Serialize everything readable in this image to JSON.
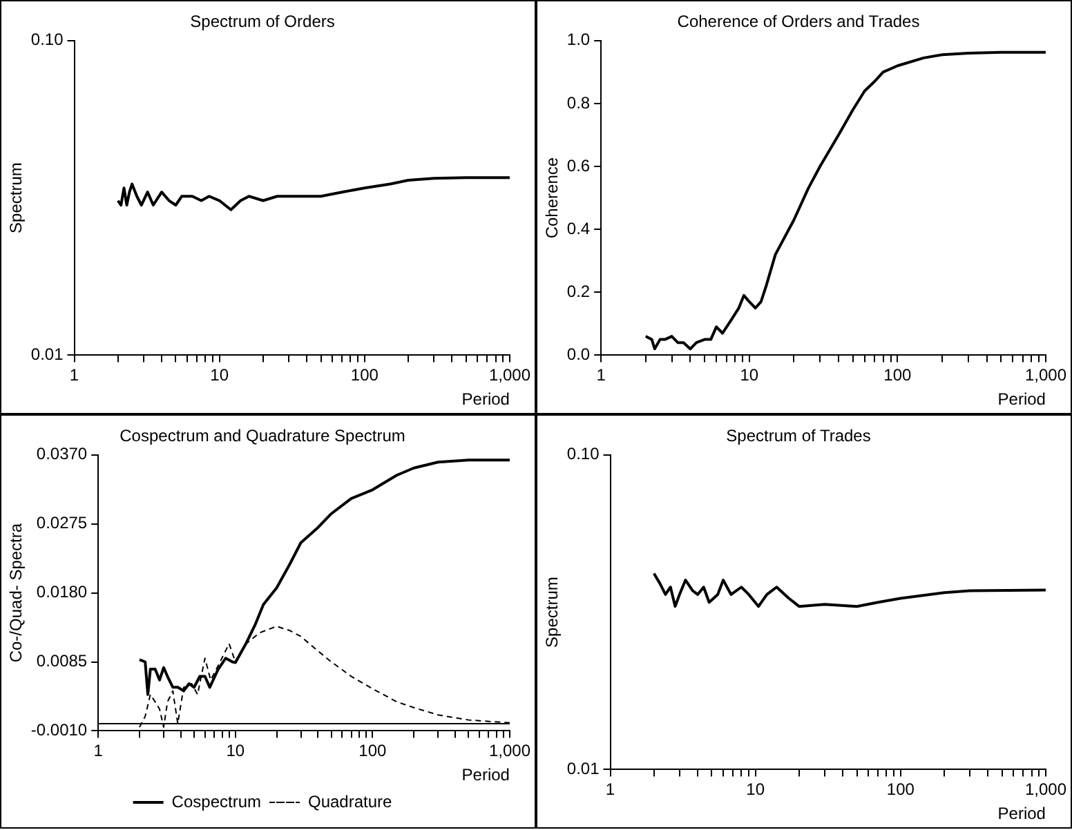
{
  "chart_data": [
    {
      "type": "line",
      "title": "Spectrum of Orders",
      "xlabel": "Period",
      "ylabel": "Spectrum",
      "log": "xy",
      "grid": false,
      "legend": false,
      "marker": "none",
      "xlim": [
        1,
        1000
      ],
      "ylim": [
        0.01,
        0.1
      ],
      "xticks": [
        1,
        {
          "value": 2,
          "label": null
        },
        {
          "value": 3,
          "label": null
        },
        {
          "value": 4,
          "label": null
        },
        {
          "value": 5,
          "label": null
        },
        {
          "value": 6,
          "label": null
        },
        {
          "value": 7,
          "label": null
        },
        {
          "value": 8,
          "label": null
        },
        {
          "value": 9,
          "label": null
        },
        10,
        {
          "value": 20,
          "label": null
        },
        {
          "value": 30,
          "label": null
        },
        {
          "value": 40,
          "label": null
        },
        {
          "value": 50,
          "label": null
        },
        {
          "value": 60,
          "label": null
        },
        {
          "value": 70,
          "label": null
        },
        {
          "value": 80,
          "label": null
        },
        {
          "value": 90,
          "label": null
        },
        100,
        {
          "value": 200,
          "label": null
        },
        {
          "value": 300,
          "label": null
        },
        {
          "value": 400,
          "label": null
        },
        {
          "value": 500,
          "label": null
        },
        {
          "value": 600,
          "label": null
        },
        {
          "value": 700,
          "label": null
        },
        {
          "value": 800,
          "label": null
        },
        {
          "value": 900,
          "label": null
        },
        {
          "value": 1000,
          "label": "1,000"
        }
      ],
      "yticks": [
        {
          "value": 0.01,
          "label": "0.01"
        },
        {
          "value": 0.1,
          "label": "0.10"
        }
      ],
      "series": [
        {
          "color": "#000000",
          "x": [
            2.0,
            2.1,
            2.2,
            2.3,
            2.4,
            2.5,
            2.7,
            2.9,
            3.2,
            3.5,
            4.0,
            4.5,
            5.0,
            5.5,
            6.5,
            7.5,
            8.5,
            10,
            12,
            14,
            16,
            20,
            25,
            30,
            40,
            50,
            70,
            100,
            150,
            200,
            300,
            500,
            1000
          ],
          "values": [
            0.031,
            0.03,
            0.034,
            0.03,
            0.033,
            0.035,
            0.032,
            0.03,
            0.033,
            0.03,
            0.033,
            0.031,
            0.03,
            0.032,
            0.032,
            0.031,
            0.032,
            0.031,
            0.029,
            0.031,
            0.032,
            0.031,
            0.032,
            0.032,
            0.032,
            0.032,
            0.033,
            0.034,
            0.035,
            0.036,
            0.0365,
            0.0367,
            0.0367
          ]
        }
      ]
    },
    {
      "type": "line",
      "title": "Coherence of Orders and Trades",
      "xlabel": "Period",
      "ylabel": "Coherence",
      "log": "x",
      "grid": false,
      "legend": false,
      "marker": "none",
      "xlim": [
        1,
        1000
      ],
      "ylim": [
        0,
        1
      ],
      "xticks": [
        1,
        {
          "value": 2,
          "label": null
        },
        {
          "value": 3,
          "label": null
        },
        {
          "value": 4,
          "label": null
        },
        {
          "value": 5,
          "label": null
        },
        {
          "value": 6,
          "label": null
        },
        {
          "value": 7,
          "label": null
        },
        {
          "value": 8,
          "label": null
        },
        {
          "value": 9,
          "label": null
        },
        10,
        {
          "value": 20,
          "label": null
        },
        {
          "value": 30,
          "label": null
        },
        {
          "value": 40,
          "label": null
        },
        {
          "value": 50,
          "label": null
        },
        {
          "value": 60,
          "label": null
        },
        {
          "value": 70,
          "label": null
        },
        {
          "value": 80,
          "label": null
        },
        {
          "value": 90,
          "label": null
        },
        100,
        {
          "value": 200,
          "label": null
        },
        {
          "value": 300,
          "label": null
        },
        {
          "value": 400,
          "label": null
        },
        {
          "value": 500,
          "label": null
        },
        {
          "value": 600,
          "label": null
        },
        {
          "value": 700,
          "label": null
        },
        {
          "value": 800,
          "label": null
        },
        {
          "value": 900,
          "label": null
        },
        {
          "value": 1000,
          "label": "1,000"
        }
      ],
      "yticks": [
        {
          "value": 0,
          "label": "0.0"
        },
        {
          "value": 0.2,
          "label": "0.2"
        },
        {
          "value": 0.4,
          "label": "0.4"
        },
        {
          "value": 0.6,
          "label": "0.6"
        },
        {
          "value": 0.8,
          "label": "0.8"
        },
        {
          "value": 1,
          "label": "1.0"
        }
      ],
      "series": [
        {
          "color": "#000000",
          "x": [
            2.0,
            2.2,
            2.3,
            2.5,
            2.7,
            3.0,
            3.3,
            3.6,
            4.0,
            4.4,
            5,
            5.5,
            6,
            6.6,
            7.5,
            8.5,
            9.2,
            10,
            11,
            12,
            13,
            15,
            20,
            25,
            30,
            40,
            50,
            60,
            70,
            80,
            100,
            150,
            200,
            300,
            500,
            1000
          ],
          "values": [
            0.06,
            0.05,
            0.02,
            0.05,
            0.05,
            0.06,
            0.04,
            0.04,
            0.02,
            0.04,
            0.05,
            0.05,
            0.09,
            0.07,
            0.11,
            0.15,
            0.19,
            0.17,
            0.15,
            0.17,
            0.22,
            0.32,
            0.43,
            0.53,
            0.6,
            0.7,
            0.78,
            0.84,
            0.87,
            0.9,
            0.92,
            0.945,
            0.955,
            0.96,
            0.963,
            0.963
          ]
        }
      ]
    },
    {
      "type": "line",
      "title": "Cospectrum and Quadrature Spectrum",
      "xlabel": "Period",
      "ylabel": "Co-/Quad- Spectra",
      "log": "x",
      "grid": false,
      "legend": "bottom",
      "marker": "none",
      "xlim": [
        1,
        1000
      ],
      "ylim": [
        -0.001,
        0.037
      ],
      "xticks": [
        1,
        {
          "value": 2,
          "label": null
        },
        {
          "value": 3,
          "label": null
        },
        {
          "value": 4,
          "label": null
        },
        {
          "value": 5,
          "label": null
        },
        {
          "value": 6,
          "label": null
        },
        {
          "value": 7,
          "label": null
        },
        {
          "value": 8,
          "label": null
        },
        {
          "value": 9,
          "label": null
        },
        10,
        {
          "value": 20,
          "label": null
        },
        {
          "value": 30,
          "label": null
        },
        {
          "value": 40,
          "label": null
        },
        {
          "value": 50,
          "label": null
        },
        {
          "value": 60,
          "label": null
        },
        {
          "value": 70,
          "label": null
        },
        {
          "value": 80,
          "label": null
        },
        {
          "value": 90,
          "label": null
        },
        100,
        {
          "value": 200,
          "label": null
        },
        {
          "value": 300,
          "label": null
        },
        {
          "value": 400,
          "label": null
        },
        {
          "value": 500,
          "label": null
        },
        {
          "value": 600,
          "label": null
        },
        {
          "value": 700,
          "label": null
        },
        {
          "value": 800,
          "label": null
        },
        {
          "value": 900,
          "label": null
        },
        {
          "value": 1000,
          "label": "1,000"
        }
      ],
      "yticks": [
        {
          "value": -0.001,
          "label": "-0.0010"
        },
        {
          "value": 0.0085,
          "label": "0.0085"
        },
        {
          "value": 0.018,
          "label": "0.0180"
        },
        {
          "value": 0.0275,
          "label": "0.0275"
        },
        {
          "value": 0.037,
          "label": "0.0370"
        }
      ],
      "ref_lines": [
        {
          "axis": "y",
          "value": 0,
          "color": "#000000"
        }
      ],
      "series": [
        {
          "name": "Cospectrum",
          "color": "#000000",
          "line_style": "solid",
          "x": [
            2.0,
            2.2,
            2.3,
            2.4,
            2.6,
            2.8,
            3.0,
            3.2,
            3.5,
            3.8,
            4.2,
            4.6,
            5.0,
            5.5,
            6.0,
            6.5,
            7.5,
            8.5,
            9.5,
            10,
            12,
            14,
            16,
            20,
            25,
            30,
            40,
            50,
            70,
            100,
            150,
            200,
            300,
            500,
            1000
          ],
          "values": [
            0.0088,
            0.0085,
            0.004,
            0.0075,
            0.0075,
            0.006,
            0.0077,
            0.0065,
            0.005,
            0.005,
            0.0045,
            0.0055,
            0.005,
            0.0065,
            0.0065,
            0.005,
            0.0075,
            0.009,
            0.0085,
            0.0084,
            0.0111,
            0.0137,
            0.0164,
            0.0187,
            0.022,
            0.0249,
            0.027,
            0.0289,
            0.031,
            0.0322,
            0.0342,
            0.0352,
            0.036,
            0.0363,
            0.0363
          ]
        },
        {
          "name": "Quadrature",
          "color": "#000000",
          "line_style": "dashed",
          "x": [
            2.0,
            2.2,
            2.4,
            2.6,
            2.8,
            3.0,
            3.2,
            3.5,
            3.8,
            4.2,
            4.8,
            5.3,
            6.0,
            6.6,
            7.5,
            9,
            10,
            12,
            15,
            20,
            25,
            30,
            40,
            50,
            70,
            100,
            150,
            200,
            300,
            500,
            1000
          ],
          "values": [
            -0.0005,
            0.001,
            0.004,
            0.003,
            0.002,
            -0.0005,
            0.003,
            0.0045,
            0.0,
            0.005,
            0.0055,
            0.004,
            0.009,
            0.006,
            0.008,
            0.011,
            0.0085,
            0.011,
            0.0125,
            0.0134,
            0.0128,
            0.012,
            0.01,
            0.0085,
            0.0065,
            0.0048,
            0.003,
            0.0022,
            0.0012,
            0.0005,
            0.0001
          ]
        }
      ]
    },
    {
      "type": "line",
      "title": "Spectrum of Trades",
      "xlabel": "Period",
      "ylabel": "Spectrum",
      "log": "xy",
      "grid": false,
      "legend": false,
      "marker": "none",
      "xlim": [
        1,
        1000
      ],
      "ylim": [
        0.01,
        0.1
      ],
      "xticks": [
        1,
        {
          "value": 2,
          "label": null
        },
        {
          "value": 3,
          "label": null
        },
        {
          "value": 4,
          "label": null
        },
        {
          "value": 5,
          "label": null
        },
        {
          "value": 6,
          "label": null
        },
        {
          "value": 7,
          "label": null
        },
        {
          "value": 8,
          "label": null
        },
        {
          "value": 9,
          "label": null
        },
        10,
        {
          "value": 20,
          "label": null
        },
        {
          "value": 30,
          "label": null
        },
        {
          "value": 40,
          "label": null
        },
        {
          "value": 50,
          "label": null
        },
        {
          "value": 60,
          "label": null
        },
        {
          "value": 70,
          "label": null
        },
        {
          "value": 80,
          "label": null
        },
        {
          "value": 90,
          "label": null
        },
        100,
        {
          "value": 200,
          "label": null
        },
        {
          "value": 300,
          "label": null
        },
        {
          "value": 400,
          "label": null
        },
        {
          "value": 500,
          "label": null
        },
        {
          "value": 600,
          "label": null
        },
        {
          "value": 700,
          "label": null
        },
        {
          "value": 800,
          "label": null
        },
        {
          "value": 900,
          "label": null
        },
        {
          "value": 1000,
          "label": "1,000"
        }
      ],
      "yticks": [
        {
          "value": 0.01,
          "label": "0.01"
        },
        {
          "value": 0.1,
          "label": "0.10"
        }
      ],
      "series": [
        {
          "color": "#000000",
          "x": [
            2.0,
            2.2,
            2.4,
            2.6,
            2.8,
            3.0,
            3.3,
            3.7,
            4.0,
            4.4,
            4.8,
            5.5,
            6.0,
            6.8,
            8,
            9,
            10.5,
            12,
            14,
            17,
            20,
            30,
            50,
            70,
            100,
            200,
            300,
            1000
          ],
          "values": [
            0.042,
            0.039,
            0.036,
            0.038,
            0.033,
            0.036,
            0.04,
            0.037,
            0.036,
            0.038,
            0.034,
            0.036,
            0.04,
            0.036,
            0.038,
            0.036,
            0.033,
            0.036,
            0.038,
            0.035,
            0.033,
            0.0335,
            0.033,
            0.034,
            0.035,
            0.0365,
            0.037,
            0.0372
          ]
        }
      ]
    }
  ]
}
